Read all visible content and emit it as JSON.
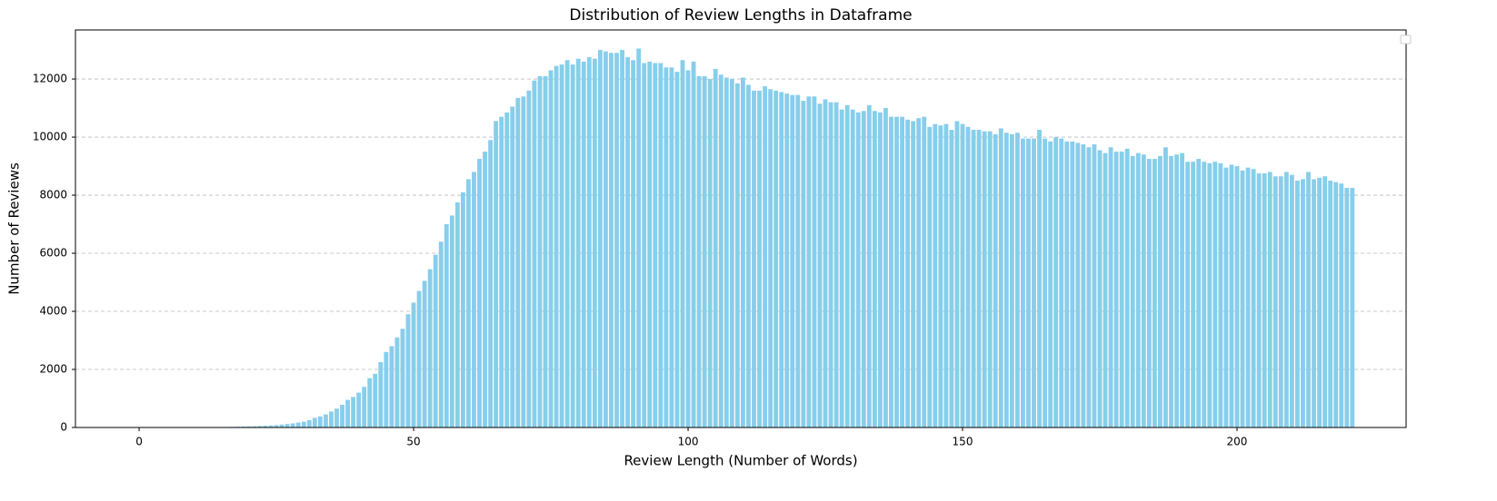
{
  "chart_data": {
    "type": "bar",
    "title": "Distribution of Review Lengths in Dataframe",
    "xlabel": "Review Length (Number of Words)",
    "ylabel": "Number of Reviews",
    "color": "#87ceeb",
    "grid": true,
    "xlim": [
      -11.6,
      230.8
    ],
    "ylim": [
      0,
      13690
    ],
    "xticks": [
      0,
      50,
      100,
      150,
      200
    ],
    "yticks": [
      0,
      2000,
      4000,
      6000,
      8000,
      10000,
      12000
    ],
    "x": [
      0,
      1,
      2,
      3,
      4,
      5,
      6,
      7,
      8,
      9,
      10,
      11,
      12,
      13,
      14,
      15,
      16,
      17,
      18,
      19,
      20,
      21,
      22,
      23,
      24,
      25,
      26,
      27,
      28,
      29,
      30,
      31,
      32,
      33,
      34,
      35,
      36,
      37,
      38,
      39,
      40,
      41,
      42,
      43,
      44,
      45,
      46,
      47,
      48,
      49,
      50,
      51,
      52,
      53,
      54,
      55,
      56,
      57,
      58,
      59,
      60,
      61,
      62,
      63,
      64,
      65,
      66,
      67,
      68,
      69,
      70,
      71,
      72,
      73,
      74,
      75,
      76,
      77,
      78,
      79,
      80,
      81,
      82,
      83,
      84,
      85,
      86,
      87,
      88,
      89,
      90,
      91,
      92,
      93,
      94,
      95,
      96,
      97,
      98,
      99,
      100,
      101,
      102,
      103,
      104,
      105,
      106,
      107,
      108,
      109,
      110,
      111,
      112,
      113,
      114,
      115,
      116,
      117,
      118,
      119,
      120,
      121,
      122,
      123,
      124,
      125,
      126,
      127,
      128,
      129,
      130,
      131,
      132,
      133,
      134,
      135,
      136,
      137,
      138,
      139,
      140,
      141,
      142,
      143,
      144,
      145,
      146,
      147,
      148,
      149,
      150,
      151,
      152,
      153,
      154,
      155,
      156,
      157,
      158,
      159,
      160,
      161,
      162,
      163,
      164,
      165,
      166,
      167,
      168,
      169,
      170,
      171,
      172,
      173,
      174,
      175,
      176,
      177,
      178,
      179,
      180,
      181,
      182,
      183,
      184,
      185,
      186,
      187,
      188,
      189,
      190,
      191,
      192,
      193,
      194,
      195,
      196,
      197,
      198,
      199,
      200,
      201,
      202,
      203,
      204,
      205,
      206,
      207,
      208,
      209,
      210,
      211,
      212,
      213,
      214,
      215,
      216,
      217,
      218,
      219,
      220,
      221
    ],
    "values": [
      0,
      0,
      0,
      0,
      0,
      0,
      0,
      0,
      0,
      0,
      0,
      0,
      0,
      0,
      0,
      10,
      15,
      20,
      25,
      30,
      35,
      40,
      50,
      60,
      70,
      80,
      100,
      120,
      140,
      170,
      200,
      250,
      330,
      380,
      450,
      550,
      650,
      780,
      950,
      1050,
      1200,
      1400,
      1700,
      1850,
      2250,
      2600,
      2800,
      3100,
      3400,
      3900,
      4300,
      4700,
      5050,
      5450,
      5950,
      6400,
      7000,
      7300,
      7750,
      8100,
      8550,
      8800,
      9250,
      9500,
      9900,
      10550,
      10700,
      10850,
      11050,
      11350,
      11400,
      11600,
      11950,
      12100,
      12100,
      12300,
      12450,
      12500,
      12650,
      12500,
      12700,
      12600,
      12750,
      12700,
      13000,
      12950,
      12900,
      12900,
      13000,
      12750,
      12650,
      13050,
      12550,
      12600,
      12550,
      12550,
      12400,
      12400,
      12250,
      12650,
      12300,
      12600,
      12100,
      12100,
      12000,
      12350,
      12150,
      12050,
      12000,
      11850,
      12050,
      11800,
      11600,
      11600,
      11750,
      11650,
      11600,
      11550,
      11500,
      11450,
      11450,
      11250,
      11400,
      11400,
      11150,
      11300,
      11200,
      11200,
      10950,
      11100,
      10950,
      10850,
      10900,
      11100,
      10900,
      10850,
      11000,
      10700,
      10700,
      10700,
      10600,
      10550,
      10650,
      10700,
      10350,
      10450,
      10400,
      10450,
      10250,
      10550,
      10450,
      10350,
      10250,
      10250,
      10200,
      10200,
      10100,
      10300,
      10150,
      10100,
      10150,
      9950,
      9950,
      9950,
      10250,
      9950,
      9850,
      10000,
      9950,
      9850,
      9850,
      9800,
      9750,
      9650,
      9750,
      9550,
      9450,
      9650,
      9500,
      9500,
      9600,
      9350,
      9450,
      9400,
      9250,
      9250,
      9350,
      9650,
      9350,
      9400,
      9450,
      9150,
      9150,
      9250,
      9150,
      9100,
      9150,
      9100,
      8950,
      9050,
      9000,
      8850,
      8950,
      8900,
      8750,
      8750,
      8800,
      8650,
      8650,
      8800,
      8700,
      8500,
      8550,
      8800,
      8550,
      8600,
      8650,
      8500,
      8450,
      8400,
      8250,
      8250
    ]
  }
}
